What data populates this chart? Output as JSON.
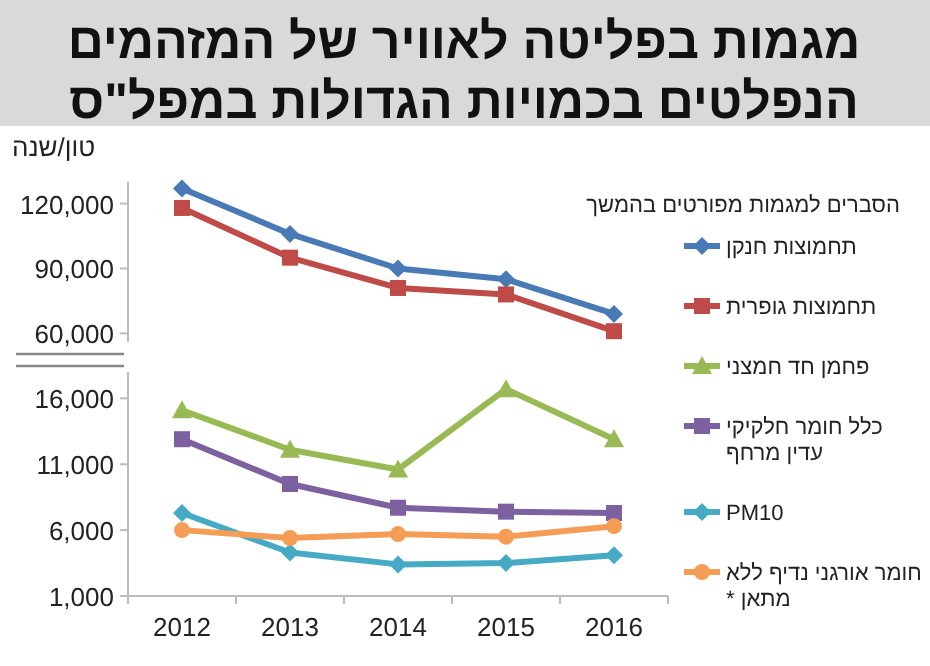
{
  "chart_data": [
    {
      "type": "line",
      "title": "מגמות בפליטה לאוויר של המזהמים הנפלטים בכמויות הגדולות במפל\"ס",
      "ylabel": "טון/שנה",
      "annotations": [
        "הסברים למגמות מפורטים בהמשך"
      ],
      "categories": [
        "2012",
        "2013",
        "2014",
        "2015",
        "2016"
      ],
      "tick_labels": "y",
      "grid": false,
      "legend": "right",
      "ylim": [
        56000,
        130000
      ],
      "yticks": [
        {
          "value": 60000,
          "label": "60,000"
        },
        {
          "value": 90000,
          "label": "90,000"
        },
        {
          "value": 120000,
          "label": "120,000"
        }
      ],
      "series": [
        {
          "name": "תחמוצות חנקן",
          "color": "#4a7ab5",
          "marker": "diamond",
          "values": [
            127000,
            106000,
            90000,
            85000,
            69000
          ]
        },
        {
          "name": "תחמוצות גופרית",
          "color": "#be4b48",
          "marker": "square",
          "values": [
            118000,
            95000,
            81000,
            78000,
            61000
          ]
        }
      ]
    },
    {
      "type": "line",
      "categories": [
        "2012",
        "2013",
        "2014",
        "2015",
        "2016"
      ],
      "grid": false,
      "legend": "right",
      "ylim": [
        1000,
        18000
      ],
      "yticks": [
        {
          "value": 1000,
          "label": "1,000"
        },
        {
          "value": 6000,
          "label": "6,000"
        },
        {
          "value": 11000,
          "label": "11,000"
        },
        {
          "value": 16000,
          "label": "16,000"
        }
      ],
      "series": [
        {
          "name": "פחמן חד חמצני",
          "color": "#98b954",
          "marker": "triangle",
          "values": [
            15100,
            12100,
            10600,
            16700,
            12900
          ]
        },
        {
          "name": "כלל חומר חלקיקי עדין מרחף",
          "color": "#7d60a0",
          "marker": "square",
          "values": [
            12900,
            9500,
            7700,
            7400,
            7300
          ]
        },
        {
          "name": "PM10",
          "color": "#46aac5",
          "marker": "diamond",
          "values": [
            7300,
            4300,
            3400,
            3500,
            4100
          ]
        },
        {
          "name": "חומר אורגני נדיף ללא מתאן *",
          "color": "#f59d56",
          "marker": "circle",
          "values": [
            6000,
            5400,
            5700,
            5500,
            6300
          ]
        }
      ]
    }
  ]
}
